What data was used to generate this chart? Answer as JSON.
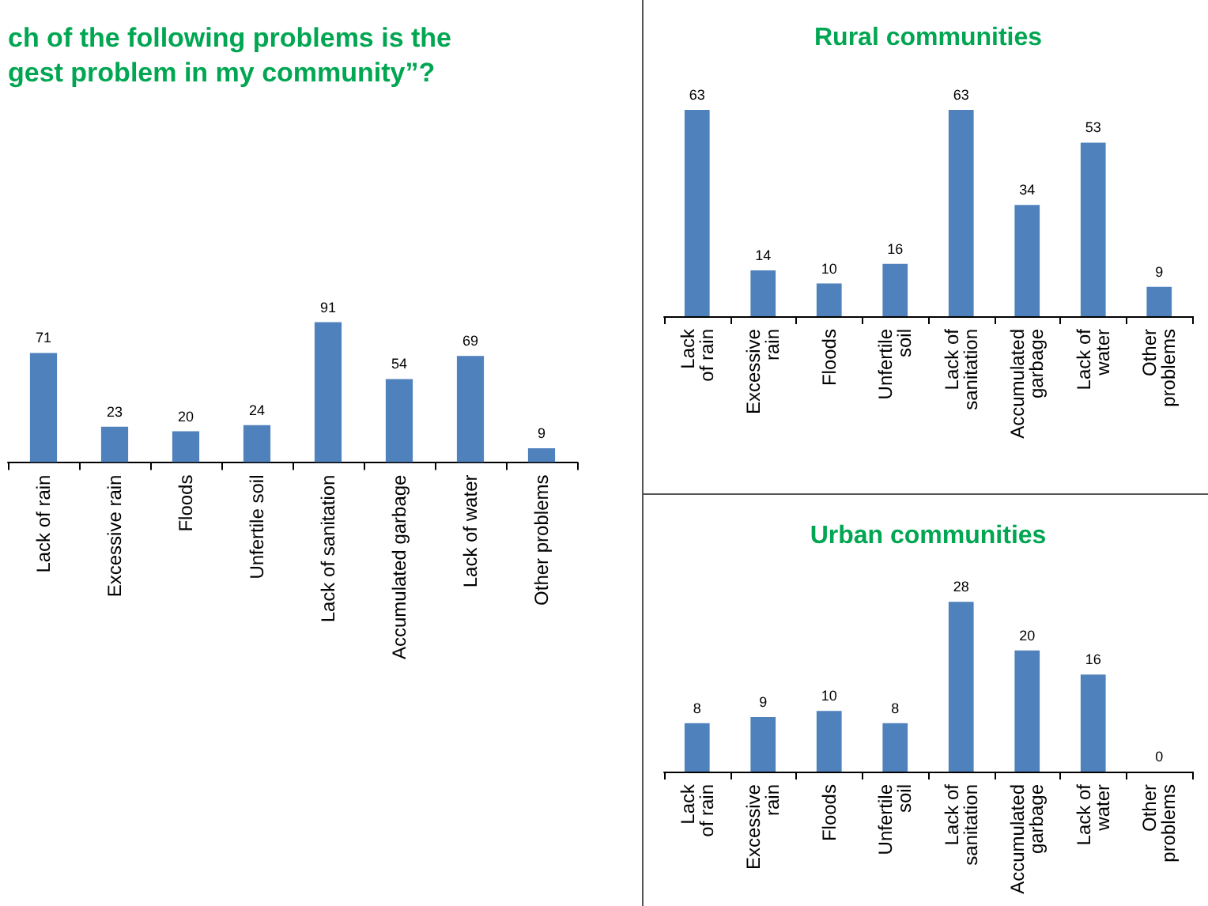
{
  "chart_data": [
    {
      "type": "bar",
      "title": "ch of the following problems is the\ngest problem in my community”?",
      "categories": [
        "Lack of rain",
        "Excessive rain",
        "Floods",
        "Unfertile soil",
        "Lack of sanitation",
        "Accumulated garbage",
        "Lack of water",
        "Other problems"
      ],
      "values": [
        71,
        23,
        20,
        24,
        91,
        54,
        69,
        9
      ],
      "color": "#4f81bd",
      "data_labels": true
    },
    {
      "type": "bar",
      "title": "Rural communities",
      "categories": [
        "Lack\nof rain",
        "Excessive\nrain",
        "Floods",
        "Unfertile\nsoil",
        "Lack of\nsanitation",
        "Accumulated\ngarbage",
        "Lack of\nwater",
        "Other\nproblems"
      ],
      "values": [
        63,
        14,
        10,
        16,
        63,
        34,
        53,
        9
      ],
      "color": "#4f81bd",
      "data_labels": true
    },
    {
      "type": "bar",
      "title": "Urban communities",
      "categories": [
        "Lack\nof rain",
        "Excessive\nrain",
        "Floods",
        "Unfertile\nsoil",
        "Lack of\nsanitation",
        "Accumulated\ngarbage",
        "Lack of\nwater",
        "Other\nproblems"
      ],
      "values": [
        8,
        9,
        10,
        8,
        28,
        20,
        16,
        0
      ],
      "color": "#4f81bd",
      "data_labels": true
    }
  ]
}
